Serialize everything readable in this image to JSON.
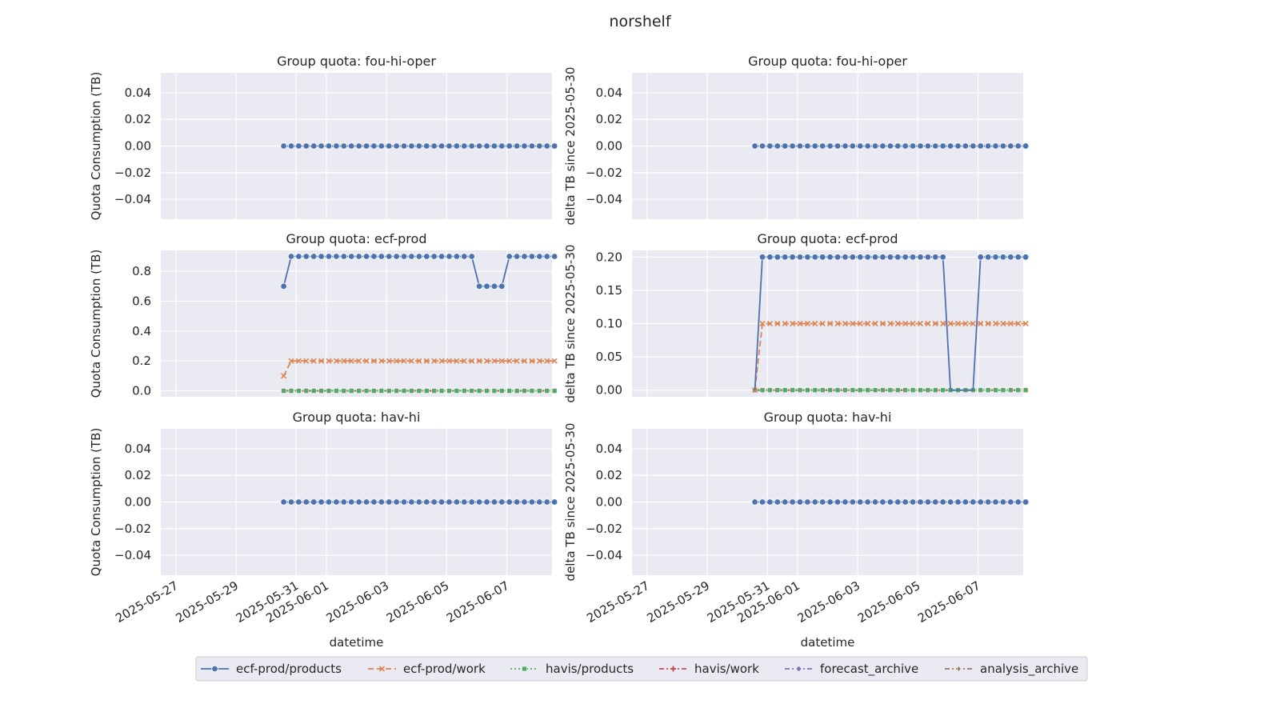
{
  "title": "norshelf",
  "colors": {
    "ecf-prod/products": "#4c72b0",
    "ecf-prod/work": "#dd8452",
    "havis/products": "#55a868",
    "havis/work": "#c44e52",
    "forecast_archive": "#8172b3",
    "analysis_archive": "#937860"
  },
  "legend": {
    "placement": "bottom-center",
    "entries": [
      {
        "name": "ecf-prod/products",
        "marker": "circle",
        "dash": "solid"
      },
      {
        "name": "ecf-prod/work",
        "marker": "x",
        "dash": "dashed"
      },
      {
        "name": "havis/products",
        "marker": "square",
        "dash": "dotted"
      },
      {
        "name": "havis/work",
        "marker": "plus",
        "dash": "dashdot"
      },
      {
        "name": "forecast_archive",
        "marker": "diamond",
        "dash": "dashdot"
      },
      {
        "name": "analysis_archive",
        "marker": "thin-diamond",
        "dash": "dashdot"
      }
    ]
  },
  "chart_data": [
    {
      "type": "line",
      "title": "Group quota: fou-hi-oper",
      "ylabel": "Quota Consumption (TB)",
      "xlabel": "",
      "xlim": [
        "2025-05-26T12:00",
        "2025-06-08T12:00"
      ],
      "ylim": [
        -0.055,
        0.055
      ],
      "yticks": [
        -0.04,
        -0.02,
        0.0,
        0.02,
        0.04
      ],
      "ytick_labels": [
        "−0.04",
        "−0.02",
        "0.00",
        "0.02",
        "0.04"
      ],
      "xticks": [
        "2025-05-27",
        "2025-05-29",
        "2025-05-31",
        "2025-06-01",
        "2025-06-03",
        "2025-06-05",
        "2025-06-07"
      ],
      "xtick_labels": [],
      "grid": true,
      "series": [
        {
          "name": "ecf-prod/products",
          "constant": 0
        },
        {
          "name": "ecf-prod/work",
          "constant": 0
        },
        {
          "name": "havis/products",
          "constant": 0
        },
        {
          "name": "havis/work",
          "constant": 0
        },
        {
          "name": "forecast_archive",
          "constant": 0
        },
        {
          "name": "analysis_archive",
          "constant": 0
        }
      ]
    },
    {
      "type": "line",
      "title": "Group quota: fou-hi-oper",
      "ylabel": "delta TB since 2025-05-30",
      "xlabel": "",
      "xlim": [
        "2025-05-26T12:00",
        "2025-06-08T12:00"
      ],
      "ylim": [
        -0.055,
        0.055
      ],
      "yticks": [
        -0.04,
        -0.02,
        0.0,
        0.02,
        0.04
      ],
      "ytick_labels": [
        "−0.04",
        "−0.02",
        "0.00",
        "0.02",
        "0.04"
      ],
      "xticks": [
        "2025-05-27",
        "2025-05-29",
        "2025-05-31",
        "2025-06-01",
        "2025-06-03",
        "2025-06-05",
        "2025-06-07"
      ],
      "xtick_labels": [],
      "grid": true,
      "series": [
        {
          "name": "ecf-prod/products",
          "constant": 0
        },
        {
          "name": "ecf-prod/work",
          "constant": 0
        },
        {
          "name": "havis/products",
          "constant": 0
        },
        {
          "name": "havis/work",
          "constant": 0
        },
        {
          "name": "forecast_archive",
          "constant": 0
        },
        {
          "name": "analysis_archive",
          "constant": 0
        }
      ]
    },
    {
      "type": "line",
      "title": "Group quota: ecf-prod",
      "ylabel": "Quota Consumption (TB)",
      "xlabel": "",
      "xlim": [
        "2025-05-26T12:00",
        "2025-06-08T12:00"
      ],
      "ylim": [
        -0.04,
        0.94
      ],
      "yticks": [
        0.0,
        0.2,
        0.4,
        0.6,
        0.8
      ],
      "ytick_labels": [
        "0.0",
        "0.2",
        "0.4",
        "0.6",
        "0.8"
      ],
      "xticks": [
        "2025-05-27",
        "2025-05-29",
        "2025-05-31",
        "2025-06-01",
        "2025-06-03",
        "2025-06-05",
        "2025-06-07"
      ],
      "xtick_labels": [],
      "grid": true,
      "series": [
        {
          "name": "ecf-prod/products",
          "values": [
            0.7,
            0.9,
            0.9,
            0.9,
            0.9,
            0.9,
            0.9,
            0.9,
            0.9,
            0.9,
            0.9,
            0.9,
            0.9,
            0.9,
            0.9,
            0.9,
            0.9,
            0.9,
            0.9,
            0.9,
            0.9,
            0.9,
            0.9,
            0.9,
            0.9,
            0.9,
            0.7,
            0.7,
            0.7,
            0.7,
            0.9,
            0.9,
            0.9,
            0.9,
            0.9,
            0.9,
            0.9
          ]
        },
        {
          "name": "ecf-prod/work",
          "values": [
            0.1,
            0.2,
            0.2,
            0.2,
            0.2,
            0.2,
            0.2,
            0.2,
            0.2,
            0.2,
            0.2,
            0.2,
            0.2,
            0.2,
            0.2,
            0.2,
            0.2,
            0.2,
            0.2,
            0.2,
            0.2,
            0.2,
            0.2,
            0.2,
            0.2,
            0.2,
            0.2,
            0.2,
            0.2,
            0.2,
            0.2,
            0.2,
            0.2,
            0.2,
            0.2,
            0.2,
            0.2
          ]
        },
        {
          "name": "havis/products",
          "constant": 0
        },
        {
          "name": "havis/work",
          "constant": 0
        },
        {
          "name": "forecast_archive",
          "constant": 0
        },
        {
          "name": "analysis_archive",
          "constant": 0
        }
      ]
    },
    {
      "type": "line",
      "title": "Group quota: ecf-prod",
      "ylabel": "delta TB since 2025-05-30",
      "xlabel": "",
      "xlim": [
        "2025-05-26T12:00",
        "2025-06-08T12:00"
      ],
      "ylim": [
        -0.01,
        0.21
      ],
      "yticks": [
        0.0,
        0.05,
        0.1,
        0.15,
        0.2
      ],
      "ytick_labels": [
        "0.00",
        "0.05",
        "0.10",
        "0.15",
        "0.20"
      ],
      "xticks": [
        "2025-05-27",
        "2025-05-29",
        "2025-05-31",
        "2025-06-01",
        "2025-06-03",
        "2025-06-05",
        "2025-06-07"
      ],
      "xtick_labels": [],
      "grid": true,
      "series": [
        {
          "name": "ecf-prod/products",
          "values": [
            0.0,
            0.2,
            0.2,
            0.2,
            0.2,
            0.2,
            0.2,
            0.2,
            0.2,
            0.2,
            0.2,
            0.2,
            0.2,
            0.2,
            0.2,
            0.2,
            0.2,
            0.2,
            0.2,
            0.2,
            0.2,
            0.2,
            0.2,
            0.2,
            0.2,
            0.2,
            0.0,
            0.0,
            0.0,
            0.0,
            0.2,
            0.2,
            0.2,
            0.2,
            0.2,
            0.2,
            0.2
          ],
          "marker_mask": [
            false,
            true,
            true,
            true,
            true,
            true,
            true,
            true,
            true,
            true,
            true,
            true,
            true,
            true,
            true,
            true,
            true,
            true,
            true,
            true,
            true,
            true,
            true,
            true,
            true,
            true,
            false,
            false,
            false,
            false,
            true,
            true,
            true,
            true,
            true,
            true,
            true
          ]
        },
        {
          "name": "ecf-prod/work",
          "values": [
            0.0,
            0.1,
            0.1,
            0.1,
            0.1,
            0.1,
            0.1,
            0.1,
            0.1,
            0.1,
            0.1,
            0.1,
            0.1,
            0.1,
            0.1,
            0.1,
            0.1,
            0.1,
            0.1,
            0.1,
            0.1,
            0.1,
            0.1,
            0.1,
            0.1,
            0.1,
            0.1,
            0.1,
            0.1,
            0.1,
            0.1,
            0.1,
            0.1,
            0.1,
            0.1,
            0.1,
            0.1
          ]
        },
        {
          "name": "havis/products",
          "constant": 0
        },
        {
          "name": "havis/work",
          "constant": 0
        },
        {
          "name": "forecast_archive",
          "constant": 0
        },
        {
          "name": "analysis_archive",
          "constant": 0
        }
      ]
    },
    {
      "type": "line",
      "title": "Group quota: hav-hi",
      "ylabel": "Quota Consumption (TB)",
      "xlabel": "datetime",
      "xlim": [
        "2025-05-26T12:00",
        "2025-06-08T12:00"
      ],
      "ylim": [
        -0.055,
        0.055
      ],
      "yticks": [
        -0.04,
        -0.02,
        0.0,
        0.02,
        0.04
      ],
      "ytick_labels": [
        "−0.04",
        "−0.02",
        "0.00",
        "0.02",
        "0.04"
      ],
      "xticks": [
        "2025-05-27",
        "2025-05-29",
        "2025-05-31",
        "2025-06-01",
        "2025-06-03",
        "2025-06-05",
        "2025-06-07"
      ],
      "xtick_labels": [
        "2025-05-27",
        "2025-05-29",
        "2025-05-31",
        "2025-06-01",
        "2025-06-03",
        "2025-06-05",
        "2025-06-07"
      ],
      "grid": true,
      "series": [
        {
          "name": "ecf-prod/products",
          "constant": 0
        },
        {
          "name": "ecf-prod/work",
          "constant": 0
        },
        {
          "name": "havis/products",
          "constant": 0
        },
        {
          "name": "havis/work",
          "constant": 0
        },
        {
          "name": "forecast_archive",
          "constant": 0
        },
        {
          "name": "analysis_archive",
          "constant": 0
        }
      ]
    },
    {
      "type": "line",
      "title": "Group quota: hav-hi",
      "ylabel": "delta TB since 2025-05-30",
      "xlabel": "datetime",
      "xlim": [
        "2025-05-26T12:00",
        "2025-06-08T12:00"
      ],
      "ylim": [
        -0.055,
        0.055
      ],
      "yticks": [
        -0.04,
        -0.02,
        0.0,
        0.02,
        0.04
      ],
      "ytick_labels": [
        "−0.04",
        "−0.02",
        "0.00",
        "0.02",
        "0.04"
      ],
      "xticks": [
        "2025-05-27",
        "2025-05-29",
        "2025-05-31",
        "2025-06-01",
        "2025-06-03",
        "2025-06-05",
        "2025-06-07"
      ],
      "xtick_labels": [
        "2025-05-27",
        "2025-05-29",
        "2025-05-31",
        "2025-06-01",
        "2025-06-03",
        "2025-06-05",
        "2025-06-07"
      ],
      "grid": true,
      "series": [
        {
          "name": "ecf-prod/products",
          "constant": 0
        },
        {
          "name": "ecf-prod/work",
          "constant": 0
        },
        {
          "name": "havis/products",
          "constant": 0
        },
        {
          "name": "havis/work",
          "constant": 0
        },
        {
          "name": "forecast_archive",
          "constant": 0
        },
        {
          "name": "analysis_archive",
          "constant": 0
        }
      ]
    }
  ]
}
